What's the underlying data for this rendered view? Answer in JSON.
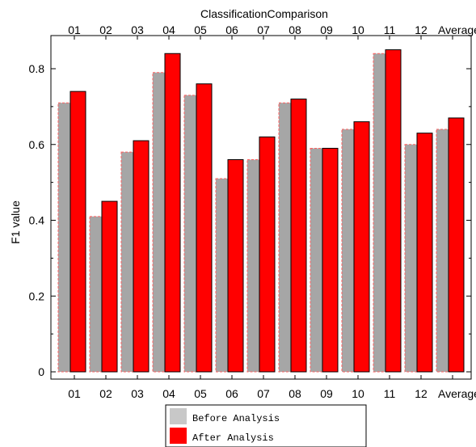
{
  "chart_data": {
    "type": "bar",
    "title": "ClassificationComparison",
    "xlabel": "",
    "ylabel": "F1 value",
    "categories": [
      "01",
      "02",
      "03",
      "04",
      "05",
      "06",
      "07",
      "08",
      "09",
      "10",
      "11",
      "12",
      "Average"
    ],
    "series": [
      {
        "name": "Before Analysis",
        "color": "#a0a0a0",
        "values": [
          0.71,
          0.41,
          0.58,
          0.79,
          0.73,
          0.51,
          0.56,
          0.71,
          0.59,
          0.64,
          0.84,
          0.6,
          0.64
        ]
      },
      {
        "name": "After Analysis",
        "color": "#ff0000",
        "values": [
          0.74,
          0.45,
          0.61,
          0.84,
          0.76,
          0.56,
          0.62,
          0.72,
          0.59,
          0.66,
          0.85,
          0.63,
          0.67
        ]
      }
    ],
    "ylim": [
      0,
      0.87
    ],
    "yticks": [
      "0",
      "0.2",
      "0.4",
      "0.6",
      "0.8"
    ],
    "grid": false,
    "legend_position": "bottom-center"
  }
}
